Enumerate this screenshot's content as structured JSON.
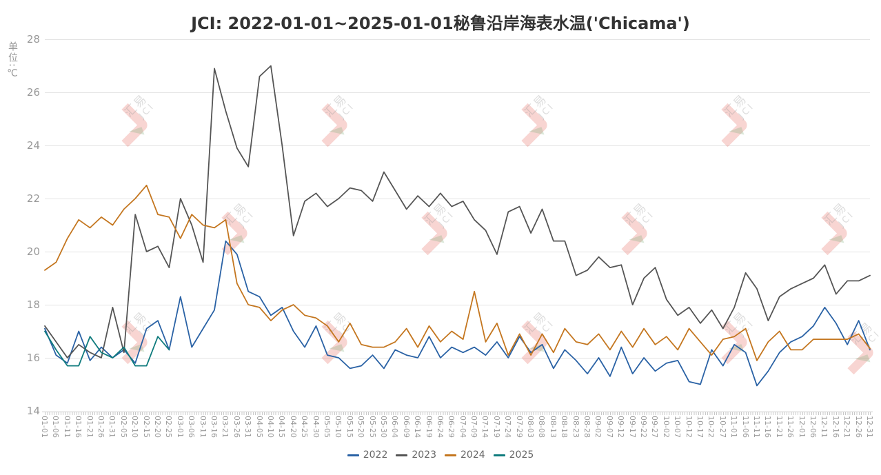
{
  "page": {
    "title": "JCI: 2022-01-01~2025-01-01秘鲁沿岸海表水温('Chicama')"
  },
  "y_axis": {
    "unit_label": "单位:℃"
  },
  "watermark": {
    "text_cn": "汇易",
    "text_en": "JCI"
  },
  "legend": [
    {
      "label": "2022",
      "color": "#2a62a5"
    },
    {
      "label": "2023",
      "color": "#555555"
    },
    {
      "label": "2024",
      "color": "#c4761f"
    },
    {
      "label": "2025",
      "color": "#0f7b7d"
    }
  ],
  "chart_data": {
    "type": "line",
    "title": "JCI: 2022-01-01~2025-01-01秘鲁沿岸海表水温('Chicama')",
    "xlabel": "",
    "ylabel": "单位:℃",
    "ylim": [
      14,
      28
    ],
    "y_ticks": [
      14,
      16,
      18,
      20,
      22,
      24,
      26,
      28
    ],
    "grid": "horizontal",
    "legend_position": "bottom",
    "x": [
      "01-01",
      "01-06",
      "01-11",
      "01-16",
      "01-21",
      "01-26",
      "01-31",
      "02-05",
      "02-10",
      "02-15",
      "02-20",
      "02-25",
      "03-01",
      "03-06",
      "03-11",
      "03-16",
      "03-21",
      "03-26",
      "03-31",
      "04-05",
      "04-10",
      "04-15",
      "04-20",
      "04-25",
      "04-30",
      "05-05",
      "05-10",
      "05-15",
      "05-20",
      "05-25",
      "05-30",
      "06-04",
      "06-09",
      "06-14",
      "06-19",
      "06-24",
      "06-29",
      "07-04",
      "07-09",
      "07-14",
      "07-19",
      "07-24",
      "07-29",
      "08-03",
      "08-08",
      "08-13",
      "08-18",
      "08-23",
      "08-28",
      "09-02",
      "09-07",
      "09-12",
      "09-17",
      "09-22",
      "09-27",
      "10-02",
      "10-07",
      "10-12",
      "10-17",
      "10-22",
      "10-27",
      "11-01",
      "11-06",
      "11-11",
      "11-16",
      "11-21",
      "11-26",
      "12-01",
      "12-06",
      "12-11",
      "12-16",
      "12-21",
      "12-26",
      "12-31"
    ],
    "series": [
      {
        "name": "2022",
        "color": "#2a62a5",
        "values": [
          17.1,
          16.1,
          15.8,
          17.0,
          15.9,
          16.4,
          16.0,
          16.3,
          15.8,
          17.1,
          17.4,
          16.3,
          18.3,
          16.4,
          17.1,
          17.8,
          20.4,
          19.9,
          18.5,
          18.3,
          17.6,
          17.9,
          17.0,
          16.4,
          17.2,
          16.1,
          16.0,
          15.6,
          15.7,
          16.1,
          15.6,
          16.3,
          16.1,
          16.0,
          16.8,
          16.0,
          16.4,
          16.2,
          16.4,
          16.1,
          16.6,
          16.0,
          16.8,
          16.2,
          16.5,
          15.6,
          16.3,
          15.9,
          15.4,
          16.0,
          15.3,
          16.4,
          15.4,
          16.0,
          15.5,
          15.8,
          15.9,
          15.1,
          15.0,
          16.3,
          15.7,
          16.5,
          16.2,
          14.95,
          15.5,
          16.2,
          16.6,
          16.8,
          17.2,
          17.9,
          17.3,
          16.5,
          17.4,
          16.3
        ]
      },
      {
        "name": "2023",
        "color": "#555555",
        "values": [
          17.2,
          16.6,
          16.0,
          16.5,
          16.2,
          16.0,
          17.9,
          16.2,
          21.4,
          20.0,
          20.2,
          19.4,
          22.0,
          21.0,
          19.6,
          26.9,
          25.3,
          23.9,
          23.2,
          26.6,
          27.0,
          24.0,
          20.6,
          21.9,
          22.2,
          21.7,
          22.0,
          22.4,
          22.3,
          21.9,
          23.0,
          22.3,
          21.6,
          22.1,
          21.7,
          22.2,
          21.7,
          21.9,
          21.2,
          20.8,
          19.9,
          21.5,
          21.7,
          20.7,
          21.6,
          20.4,
          20.4,
          19.1,
          19.3,
          19.8,
          19.4,
          19.5,
          18.0,
          19.0,
          19.4,
          18.2,
          17.6,
          17.9,
          17.3,
          17.8,
          17.1,
          17.9,
          19.2,
          18.6,
          17.4,
          18.3,
          18.6,
          18.8,
          19.0,
          19.5,
          18.4,
          18.9,
          18.9,
          19.1
        ]
      },
      {
        "name": "2024",
        "color": "#c4761f",
        "values": [
          19.3,
          19.6,
          20.5,
          21.2,
          20.9,
          21.3,
          21.0,
          21.6,
          22.0,
          22.5,
          21.4,
          21.3,
          20.5,
          21.4,
          21.0,
          20.9,
          21.2,
          18.8,
          18.0,
          17.9,
          17.4,
          17.8,
          18.0,
          17.6,
          17.5,
          17.2,
          16.6,
          17.3,
          16.5,
          16.4,
          16.4,
          16.6,
          17.1,
          16.4,
          17.2,
          16.6,
          17.0,
          16.7,
          18.5,
          16.6,
          17.3,
          16.1,
          16.9,
          16.1,
          16.9,
          16.2,
          17.1,
          16.6,
          16.5,
          16.9,
          16.3,
          17.0,
          16.4,
          17.1,
          16.5,
          16.8,
          16.3,
          17.1,
          16.6,
          16.1,
          16.7,
          16.8,
          17.1,
          15.9,
          16.6,
          17.0,
          16.3,
          16.3,
          16.7,
          16.7,
          16.7,
          16.7,
          16.9,
          16.35
        ]
      },
      {
        "name": "2025",
        "color": "#0f7b7d",
        "values": [
          17.0,
          16.3,
          15.7,
          15.7,
          16.8,
          16.2,
          16.0,
          16.4,
          15.7,
          15.7,
          16.8,
          16.3,
          null,
          null,
          null,
          null,
          null,
          null,
          null,
          null,
          null,
          null,
          null,
          null,
          null,
          null,
          null,
          null,
          null,
          null,
          null,
          null,
          null,
          null,
          null,
          null,
          null,
          null,
          null,
          null,
          null,
          null,
          null,
          null,
          null,
          null,
          null,
          null,
          null,
          null,
          null,
          null,
          null,
          null,
          null,
          null,
          null,
          null,
          null,
          null,
          null,
          null,
          null,
          null,
          null,
          null,
          null,
          null,
          null,
          null,
          null,
          null,
          null,
          null
        ]
      }
    ]
  }
}
